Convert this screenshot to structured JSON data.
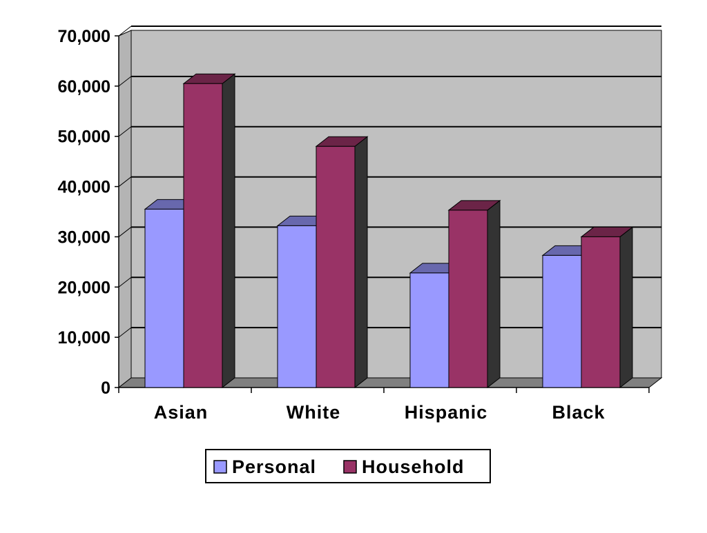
{
  "chart_data": {
    "type": "bar",
    "categories": [
      "Asian",
      "White",
      "Hispanic",
      "Black"
    ],
    "series": [
      {
        "name": "Personal",
        "values": [
          35500,
          32200,
          22800,
          26300
        ]
      },
      {
        "name": "Household",
        "values": [
          60500,
          48000,
          35300,
          30000
        ]
      }
    ],
    "y_ticks": [
      "0",
      "10,000",
      "20,000",
      "30,000",
      "40,000",
      "50,000",
      "60,000",
      "70,000"
    ],
    "ylim": [
      0,
      70000
    ],
    "grid": true,
    "legend_position": "bottom",
    "colors": {
      "Personal": "#9999ff",
      "Household": "#993366",
      "plot_background": "#c0c0c0",
      "floor": "#808080"
    },
    "title": "",
    "xlabel": "",
    "ylabel": ""
  }
}
